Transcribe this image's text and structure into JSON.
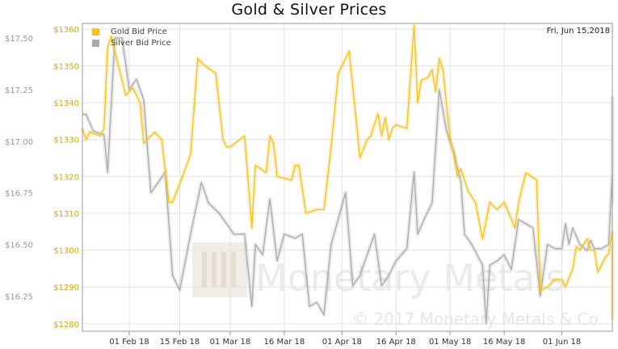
{
  "chart_data": {
    "type": "line",
    "title": "Gold & Silver Prices",
    "date_label": "Fri, Jun 15,2018",
    "x_ticks": [
      "01 Feb 18",
      "15 Feb 18",
      "01 Mar 18",
      "16 Mar 18",
      "01 Apr 18",
      "16 Apr 18",
      "01 May 18",
      "16 May 18",
      "01 Jun 18"
    ],
    "x_range": [
      "2018-01-19",
      "2018-06-15"
    ],
    "y_left": {
      "ticks": [
        "$17.50",
        "$17.25",
        "$17.00",
        "$16.75",
        "$16.50",
        "$16.25"
      ],
      "ylim": [
        16.08,
        17.57
      ],
      "axis_for": "Silver Bid Price"
    },
    "y_right": {
      "ticks": [
        "$1360",
        "$1350",
        "$1340",
        "$1330",
        "$1320",
        "$1310",
        "$1300",
        "$1290",
        "$1280"
      ],
      "ylim": [
        1278,
        1361.5
      ],
      "axis_for": "Gold Bid Price"
    },
    "grid": true,
    "legend_position": "top-left",
    "watermark": "Monetary Metals",
    "copyright": "© 2017 Monetary Metals & Co.",
    "series": [
      {
        "name": "Gold Bid Price",
        "color": "#f2c322",
        "axis": "right",
        "points": [
          [
            "2018-01-19",
            1333
          ],
          [
            "2018-01-20",
            1330
          ],
          [
            "2018-01-21",
            1332
          ],
          [
            "2018-01-24",
            1331
          ],
          [
            "2018-01-25",
            1333
          ],
          [
            "2018-01-26",
            1355
          ],
          [
            "2018-01-27",
            1358
          ],
          [
            "2018-01-28",
            1354
          ],
          [
            "2018-01-31",
            1342
          ],
          [
            "2018-02-02",
            1344
          ],
          [
            "2018-02-04",
            1340
          ],
          [
            "2018-02-05",
            1329
          ],
          [
            "2018-02-06",
            1330
          ],
          [
            "2018-02-08",
            1332
          ],
          [
            "2018-02-10",
            1330
          ],
          [
            "2018-02-12",
            1313
          ],
          [
            "2018-02-13",
            1313
          ],
          [
            "2018-02-15",
            1318
          ],
          [
            "2018-02-18",
            1326
          ],
          [
            "2018-02-20",
            1352
          ],
          [
            "2018-02-22",
            1350
          ],
          [
            "2018-02-25",
            1348
          ],
          [
            "2018-02-27",
            1330
          ],
          [
            "2018-02-28",
            1328
          ],
          [
            "2018-03-01",
            1328
          ],
          [
            "2018-03-05",
            1331
          ],
          [
            "2018-03-07",
            1306
          ],
          [
            "2018-03-08",
            1323
          ],
          [
            "2018-03-11",
            1321
          ],
          [
            "2018-03-12",
            1331
          ],
          [
            "2018-03-13",
            1329
          ],
          [
            "2018-03-14",
            1320
          ],
          [
            "2018-03-18",
            1319
          ],
          [
            "2018-03-19",
            1323
          ],
          [
            "2018-03-20",
            1323
          ],
          [
            "2018-03-22",
            1310
          ],
          [
            "2018-03-25",
            1311
          ],
          [
            "2018-03-27",
            1311
          ],
          [
            "2018-03-29",
            1328
          ],
          [
            "2018-03-31",
            1348
          ],
          [
            "2018-04-02",
            1352
          ],
          [
            "2018-04-03",
            1354
          ],
          [
            "2018-04-06",
            1325
          ],
          [
            "2018-04-08",
            1330
          ],
          [
            "2018-04-09",
            1331
          ],
          [
            "2018-04-11",
            1337
          ],
          [
            "2018-04-12",
            1331
          ],
          [
            "2018-04-13",
            1336
          ],
          [
            "2018-04-14",
            1330
          ],
          [
            "2018-04-15",
            1333
          ],
          [
            "2018-04-16",
            1334
          ],
          [
            "2018-04-19",
            1333
          ],
          [
            "2018-04-21",
            1361
          ],
          [
            "2018-04-22",
            1340
          ],
          [
            "2018-04-23",
            1346
          ],
          [
            "2018-04-25",
            1347
          ],
          [
            "2018-04-26",
            1349
          ],
          [
            "2018-04-27",
            1343
          ],
          [
            "2018-04-28",
            1352
          ],
          [
            "2018-04-29",
            1349
          ],
          [
            "2018-05-01",
            1330
          ],
          [
            "2018-05-02",
            1326
          ],
          [
            "2018-05-03",
            1320
          ],
          [
            "2018-05-04",
            1322
          ],
          [
            "2018-05-06",
            1316
          ],
          [
            "2018-05-08",
            1313
          ],
          [
            "2018-05-10",
            1303
          ],
          [
            "2018-05-12",
            1313
          ],
          [
            "2018-05-14",
            1311
          ],
          [
            "2018-05-16",
            1313
          ],
          [
            "2018-05-19",
            1306
          ],
          [
            "2018-05-20",
            1313
          ],
          [
            "2018-05-22",
            1321
          ],
          [
            "2018-05-25",
            1319
          ],
          [
            "2018-05-26",
            1289
          ],
          [
            "2018-05-28",
            1290
          ],
          [
            "2018-05-30",
            1292
          ],
          [
            "2018-06-01",
            1292
          ],
          [
            "2018-06-02",
            1290
          ],
          [
            "2018-06-04",
            1295
          ],
          [
            "2018-06-05",
            1301
          ],
          [
            "2018-06-06",
            1300
          ],
          [
            "2018-06-08",
            1303
          ],
          [
            "2018-06-09",
            1300
          ],
          [
            "2018-06-10",
            1300
          ],
          [
            "2018-06-11",
            1294
          ],
          [
            "2018-06-13",
            1298
          ],
          [
            "2018-06-14",
            1299
          ],
          [
            "2018-06-15",
            1305
          ],
          [
            "2018-06-15",
            1281
          ]
        ]
      },
      {
        "name": "Silver Bid Price",
        "color": "#aaaaaa",
        "axis": "left",
        "points": [
          [
            "2018-01-19",
            17.13
          ],
          [
            "2018-01-20",
            17.13
          ],
          [
            "2018-01-22",
            17.05
          ],
          [
            "2018-01-25",
            17.03
          ],
          [
            "2018-01-26",
            16.85
          ],
          [
            "2018-01-28",
            17.5
          ],
          [
            "2018-01-30",
            17.5
          ],
          [
            "2018-02-01",
            17.25
          ],
          [
            "2018-02-03",
            17.3
          ],
          [
            "2018-02-05",
            17.2
          ],
          [
            "2018-02-07",
            16.75
          ],
          [
            "2018-02-09",
            16.8
          ],
          [
            "2018-02-11",
            16.85
          ],
          [
            "2018-02-13",
            16.35
          ],
          [
            "2018-02-15",
            16.28
          ],
          [
            "2018-02-18",
            16.55
          ],
          [
            "2018-02-21",
            16.8
          ],
          [
            "2018-02-23",
            16.7
          ],
          [
            "2018-02-26",
            16.65
          ],
          [
            "2018-02-28",
            16.6
          ],
          [
            "2018-03-02",
            16.55
          ],
          [
            "2018-03-05",
            16.55
          ],
          [
            "2018-03-07",
            16.2
          ],
          [
            "2018-03-08",
            16.5
          ],
          [
            "2018-03-10",
            16.45
          ],
          [
            "2018-03-12",
            16.72
          ],
          [
            "2018-03-14",
            16.42
          ],
          [
            "2018-03-16",
            16.55
          ],
          [
            "2018-03-19",
            16.53
          ],
          [
            "2018-03-21",
            16.55
          ],
          [
            "2018-03-23",
            16.2
          ],
          [
            "2018-03-25",
            16.22
          ],
          [
            "2018-03-27",
            16.16
          ],
          [
            "2018-03-29",
            16.5
          ],
          [
            "2018-04-02",
            16.75
          ],
          [
            "2018-04-04",
            16.3
          ],
          [
            "2018-04-06",
            16.35
          ],
          [
            "2018-04-08",
            16.45
          ],
          [
            "2018-04-10",
            16.55
          ],
          [
            "2018-04-12",
            16.3
          ],
          [
            "2018-04-14",
            16.35
          ],
          [
            "2018-04-16",
            16.42
          ],
          [
            "2018-04-19",
            16.48
          ],
          [
            "2018-04-21",
            16.85
          ],
          [
            "2018-04-22",
            16.55
          ],
          [
            "2018-04-24",
            16.63
          ],
          [
            "2018-04-26",
            16.7
          ],
          [
            "2018-04-28",
            17.25
          ],
          [
            "2018-04-30",
            17.05
          ],
          [
            "2018-05-02",
            16.95
          ],
          [
            "2018-05-04",
            16.8
          ],
          [
            "2018-05-05",
            16.55
          ],
          [
            "2018-05-07",
            16.5
          ],
          [
            "2018-05-10",
            16.4
          ],
          [
            "2018-05-11",
            16.12
          ],
          [
            "2018-05-12",
            16.4
          ],
          [
            "2018-05-14",
            16.42
          ],
          [
            "2018-05-16",
            16.45
          ],
          [
            "2018-05-18",
            16.38
          ],
          [
            "2018-05-20",
            16.62
          ],
          [
            "2018-05-22",
            16.6
          ],
          [
            "2018-05-24",
            16.58
          ],
          [
            "2018-05-26",
            16.25
          ],
          [
            "2018-05-28",
            16.5
          ],
          [
            "2018-05-30",
            16.48
          ],
          [
            "2018-06-01",
            16.48
          ],
          [
            "2018-06-02",
            16.6
          ],
          [
            "2018-06-03",
            16.5
          ],
          [
            "2018-06-04",
            16.58
          ],
          [
            "2018-06-06",
            16.5
          ],
          [
            "2018-06-08",
            16.47
          ],
          [
            "2018-06-09",
            16.52
          ],
          [
            "2018-06-10",
            16.48
          ],
          [
            "2018-06-12",
            16.48
          ],
          [
            "2018-06-14",
            16.5
          ],
          [
            "2018-06-15",
            16.85
          ],
          [
            "2018-06-15",
            17.21
          ],
          [
            "2018-06-15",
            16.7
          ]
        ]
      }
    ]
  }
}
